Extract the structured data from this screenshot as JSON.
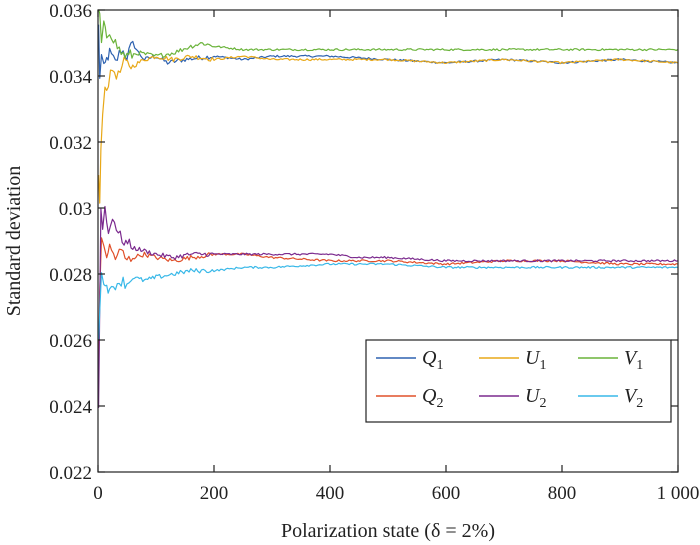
{
  "chart_data": {
    "type": "line",
    "title": "",
    "xlabel": "Polarization state (δ = 2%)",
    "ylabel": "Standard deviation",
    "xlim": [
      0,
      1000
    ],
    "ylim": [
      0.022,
      0.036
    ],
    "x_ticks": [
      0,
      200,
      400,
      600,
      800,
      1000
    ],
    "x_tick_labels": [
      "0",
      "200",
      "400",
      "600",
      "800",
      "1 000"
    ],
    "y_ticks": [
      0.022,
      0.024,
      0.026,
      0.028,
      0.03,
      0.032,
      0.034,
      0.036
    ],
    "y_tick_labels": [
      "0.022",
      "0.024",
      "0.026",
      "0.028",
      "0.03",
      "0.032",
      "0.034",
      "0.036"
    ],
    "grid": false,
    "legend_position": "bottom-right",
    "series": [
      {
        "name": "Q",
        "subscript": "1",
        "color": "#2e62b0",
        "points": [
          [
            1,
            0.0355
          ],
          [
            3,
            0.034
          ],
          [
            6,
            0.0346
          ],
          [
            10,
            0.0342
          ],
          [
            15,
            0.0345
          ],
          [
            20,
            0.0347
          ],
          [
            30,
            0.0344
          ],
          [
            40,
            0.0348
          ],
          [
            50,
            0.0346
          ],
          [
            60,
            0.035
          ],
          [
            70,
            0.0347
          ],
          [
            80,
            0.0345
          ],
          [
            100,
            0.0346
          ],
          [
            120,
            0.0344
          ],
          [
            150,
            0.0345
          ],
          [
            200,
            0.0346
          ],
          [
            250,
            0.0345
          ],
          [
            300,
            0.0346
          ],
          [
            400,
            0.0346
          ],
          [
            500,
            0.0345
          ],
          [
            600,
            0.0344
          ],
          [
            700,
            0.0345
          ],
          [
            800,
            0.0344
          ],
          [
            900,
            0.0345
          ],
          [
            1000,
            0.0344
          ]
        ]
      },
      {
        "name": "U",
        "subscript": "1",
        "color": "#e8a818",
        "points": [
          [
            1,
            0.031
          ],
          [
            3,
            0.03
          ],
          [
            5,
            0.0318
          ],
          [
            8,
            0.033
          ],
          [
            12,
            0.0336
          ],
          [
            18,
            0.0338
          ],
          [
            25,
            0.0342
          ],
          [
            35,
            0.034
          ],
          [
            45,
            0.0344
          ],
          [
            60,
            0.0343
          ],
          [
            80,
            0.0345
          ],
          [
            100,
            0.0346
          ],
          [
            130,
            0.0345
          ],
          [
            160,
            0.0346
          ],
          [
            200,
            0.0345
          ],
          [
            250,
            0.0346
          ],
          [
            300,
            0.0345
          ],
          [
            400,
            0.0345
          ],
          [
            500,
            0.0345
          ],
          [
            600,
            0.0344
          ],
          [
            700,
            0.0345
          ],
          [
            800,
            0.0344
          ],
          [
            900,
            0.0345
          ],
          [
            1000,
            0.0344
          ]
        ]
      },
      {
        "name": "V",
        "subscript": "1",
        "color": "#6ab33a",
        "points": [
          [
            1,
            0.036
          ],
          [
            3,
            0.0358
          ],
          [
            6,
            0.035
          ],
          [
            10,
            0.0355
          ],
          [
            15,
            0.0352
          ],
          [
            20,
            0.0354
          ],
          [
            30,
            0.035
          ],
          [
            40,
            0.0347
          ],
          [
            50,
            0.0346
          ],
          [
            70,
            0.0347
          ],
          [
            100,
            0.0346
          ],
          [
            130,
            0.0347
          ],
          [
            160,
            0.0349
          ],
          [
            180,
            0.035
          ],
          [
            200,
            0.0349
          ],
          [
            250,
            0.0348
          ],
          [
            300,
            0.0348
          ],
          [
            400,
            0.0348
          ],
          [
            500,
            0.0348
          ],
          [
            600,
            0.0348
          ],
          [
            700,
            0.0348
          ],
          [
            800,
            0.0348
          ],
          [
            900,
            0.0348
          ],
          [
            1000,
            0.0348
          ]
        ]
      },
      {
        "name": "Q",
        "subscript": "2",
        "color": "#e0502a",
        "points": [
          [
            1,
            0.025
          ],
          [
            3,
            0.0275
          ],
          [
            6,
            0.0292
          ],
          [
            10,
            0.0287
          ],
          [
            15,
            0.0286
          ],
          [
            20,
            0.0288
          ],
          [
            30,
            0.0285
          ],
          [
            40,
            0.0287
          ],
          [
            50,
            0.0284
          ],
          [
            60,
            0.0285
          ],
          [
            80,
            0.0286
          ],
          [
            100,
            0.0285
          ],
          [
            130,
            0.0284
          ],
          [
            160,
            0.0285
          ],
          [
            200,
            0.0286
          ],
          [
            250,
            0.0286
          ],
          [
            300,
            0.0285
          ],
          [
            400,
            0.0284
          ],
          [
            500,
            0.0284
          ],
          [
            600,
            0.0283
          ],
          [
            700,
            0.0284
          ],
          [
            800,
            0.0284
          ],
          [
            900,
            0.0283
          ],
          [
            1000,
            0.0283
          ]
        ]
      },
      {
        "name": "U",
        "subscript": "2",
        "color": "#7b2a8e",
        "points": [
          [
            1,
            0.024
          ],
          [
            3,
            0.027
          ],
          [
            5,
            0.03
          ],
          [
            8,
            0.0295
          ],
          [
            12,
            0.03
          ],
          [
            18,
            0.0292
          ],
          [
            25,
            0.0298
          ],
          [
            35,
            0.0292
          ],
          [
            45,
            0.029
          ],
          [
            60,
            0.0288
          ],
          [
            80,
            0.0287
          ],
          [
            100,
            0.0286
          ],
          [
            130,
            0.0285
          ],
          [
            160,
            0.0286
          ],
          [
            200,
            0.0286
          ],
          [
            250,
            0.0286
          ],
          [
            300,
            0.0286
          ],
          [
            400,
            0.0286
          ],
          [
            450,
            0.0285
          ],
          [
            500,
            0.0285
          ],
          [
            600,
            0.0284
          ],
          [
            700,
            0.0284
          ],
          [
            800,
            0.0284
          ],
          [
            900,
            0.0284
          ],
          [
            1000,
            0.0284
          ]
        ]
      },
      {
        "name": "V",
        "subscript": "2",
        "color": "#38b8e8",
        "points": [
          [
            1,
            0.0262
          ],
          [
            3,
            0.027
          ],
          [
            6,
            0.028
          ],
          [
            10,
            0.0276
          ],
          [
            15,
            0.0278
          ],
          [
            20,
            0.0274
          ],
          [
            30,
            0.0277
          ],
          [
            40,
            0.0278
          ],
          [
            50,
            0.0277
          ],
          [
            60,
            0.0279
          ],
          [
            80,
            0.0278
          ],
          [
            100,
            0.0279
          ],
          [
            130,
            0.028
          ],
          [
            160,
            0.0281
          ],
          [
            200,
            0.0281
          ],
          [
            250,
            0.0282
          ],
          [
            300,
            0.0282
          ],
          [
            400,
            0.0283
          ],
          [
            500,
            0.0283
          ],
          [
            600,
            0.0282
          ],
          [
            700,
            0.0282
          ],
          [
            800,
            0.0282
          ],
          [
            900,
            0.0282
          ],
          [
            1000,
            0.0282
          ]
        ]
      }
    ]
  }
}
